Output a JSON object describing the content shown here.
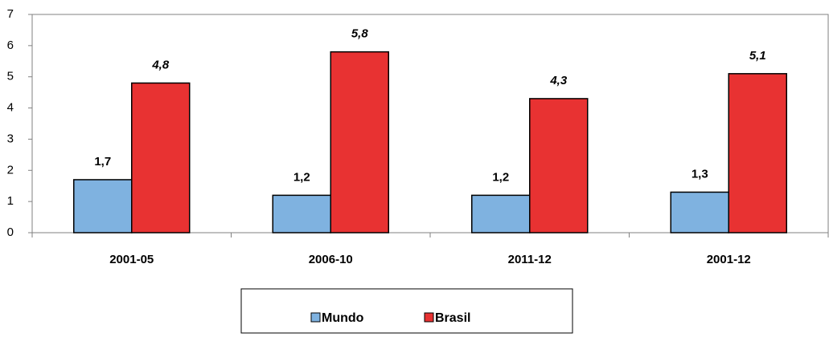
{
  "chart_data": {
    "type": "bar",
    "categories": [
      "2001-05",
      "2006-10",
      "2011-12",
      "2001-12"
    ],
    "series": [
      {
        "name": "Mundo",
        "color": "#7fb2e0",
        "values": [
          1.7,
          1.2,
          1.2,
          1.3
        ],
        "value_labels": [
          "1,7",
          "1,2",
          "1,2",
          "1,3"
        ]
      },
      {
        "name": "Brasil",
        "color": "#e83232",
        "values": [
          4.8,
          5.8,
          4.3,
          5.1
        ],
        "value_labels": [
          "4,8",
          "5,8",
          "4,3",
          "5,1"
        ]
      }
    ],
    "ylim": [
      0,
      7
    ],
    "yticks": [
      0,
      1,
      2,
      3,
      4,
      5,
      6,
      7
    ],
    "legend": "bottom"
  }
}
